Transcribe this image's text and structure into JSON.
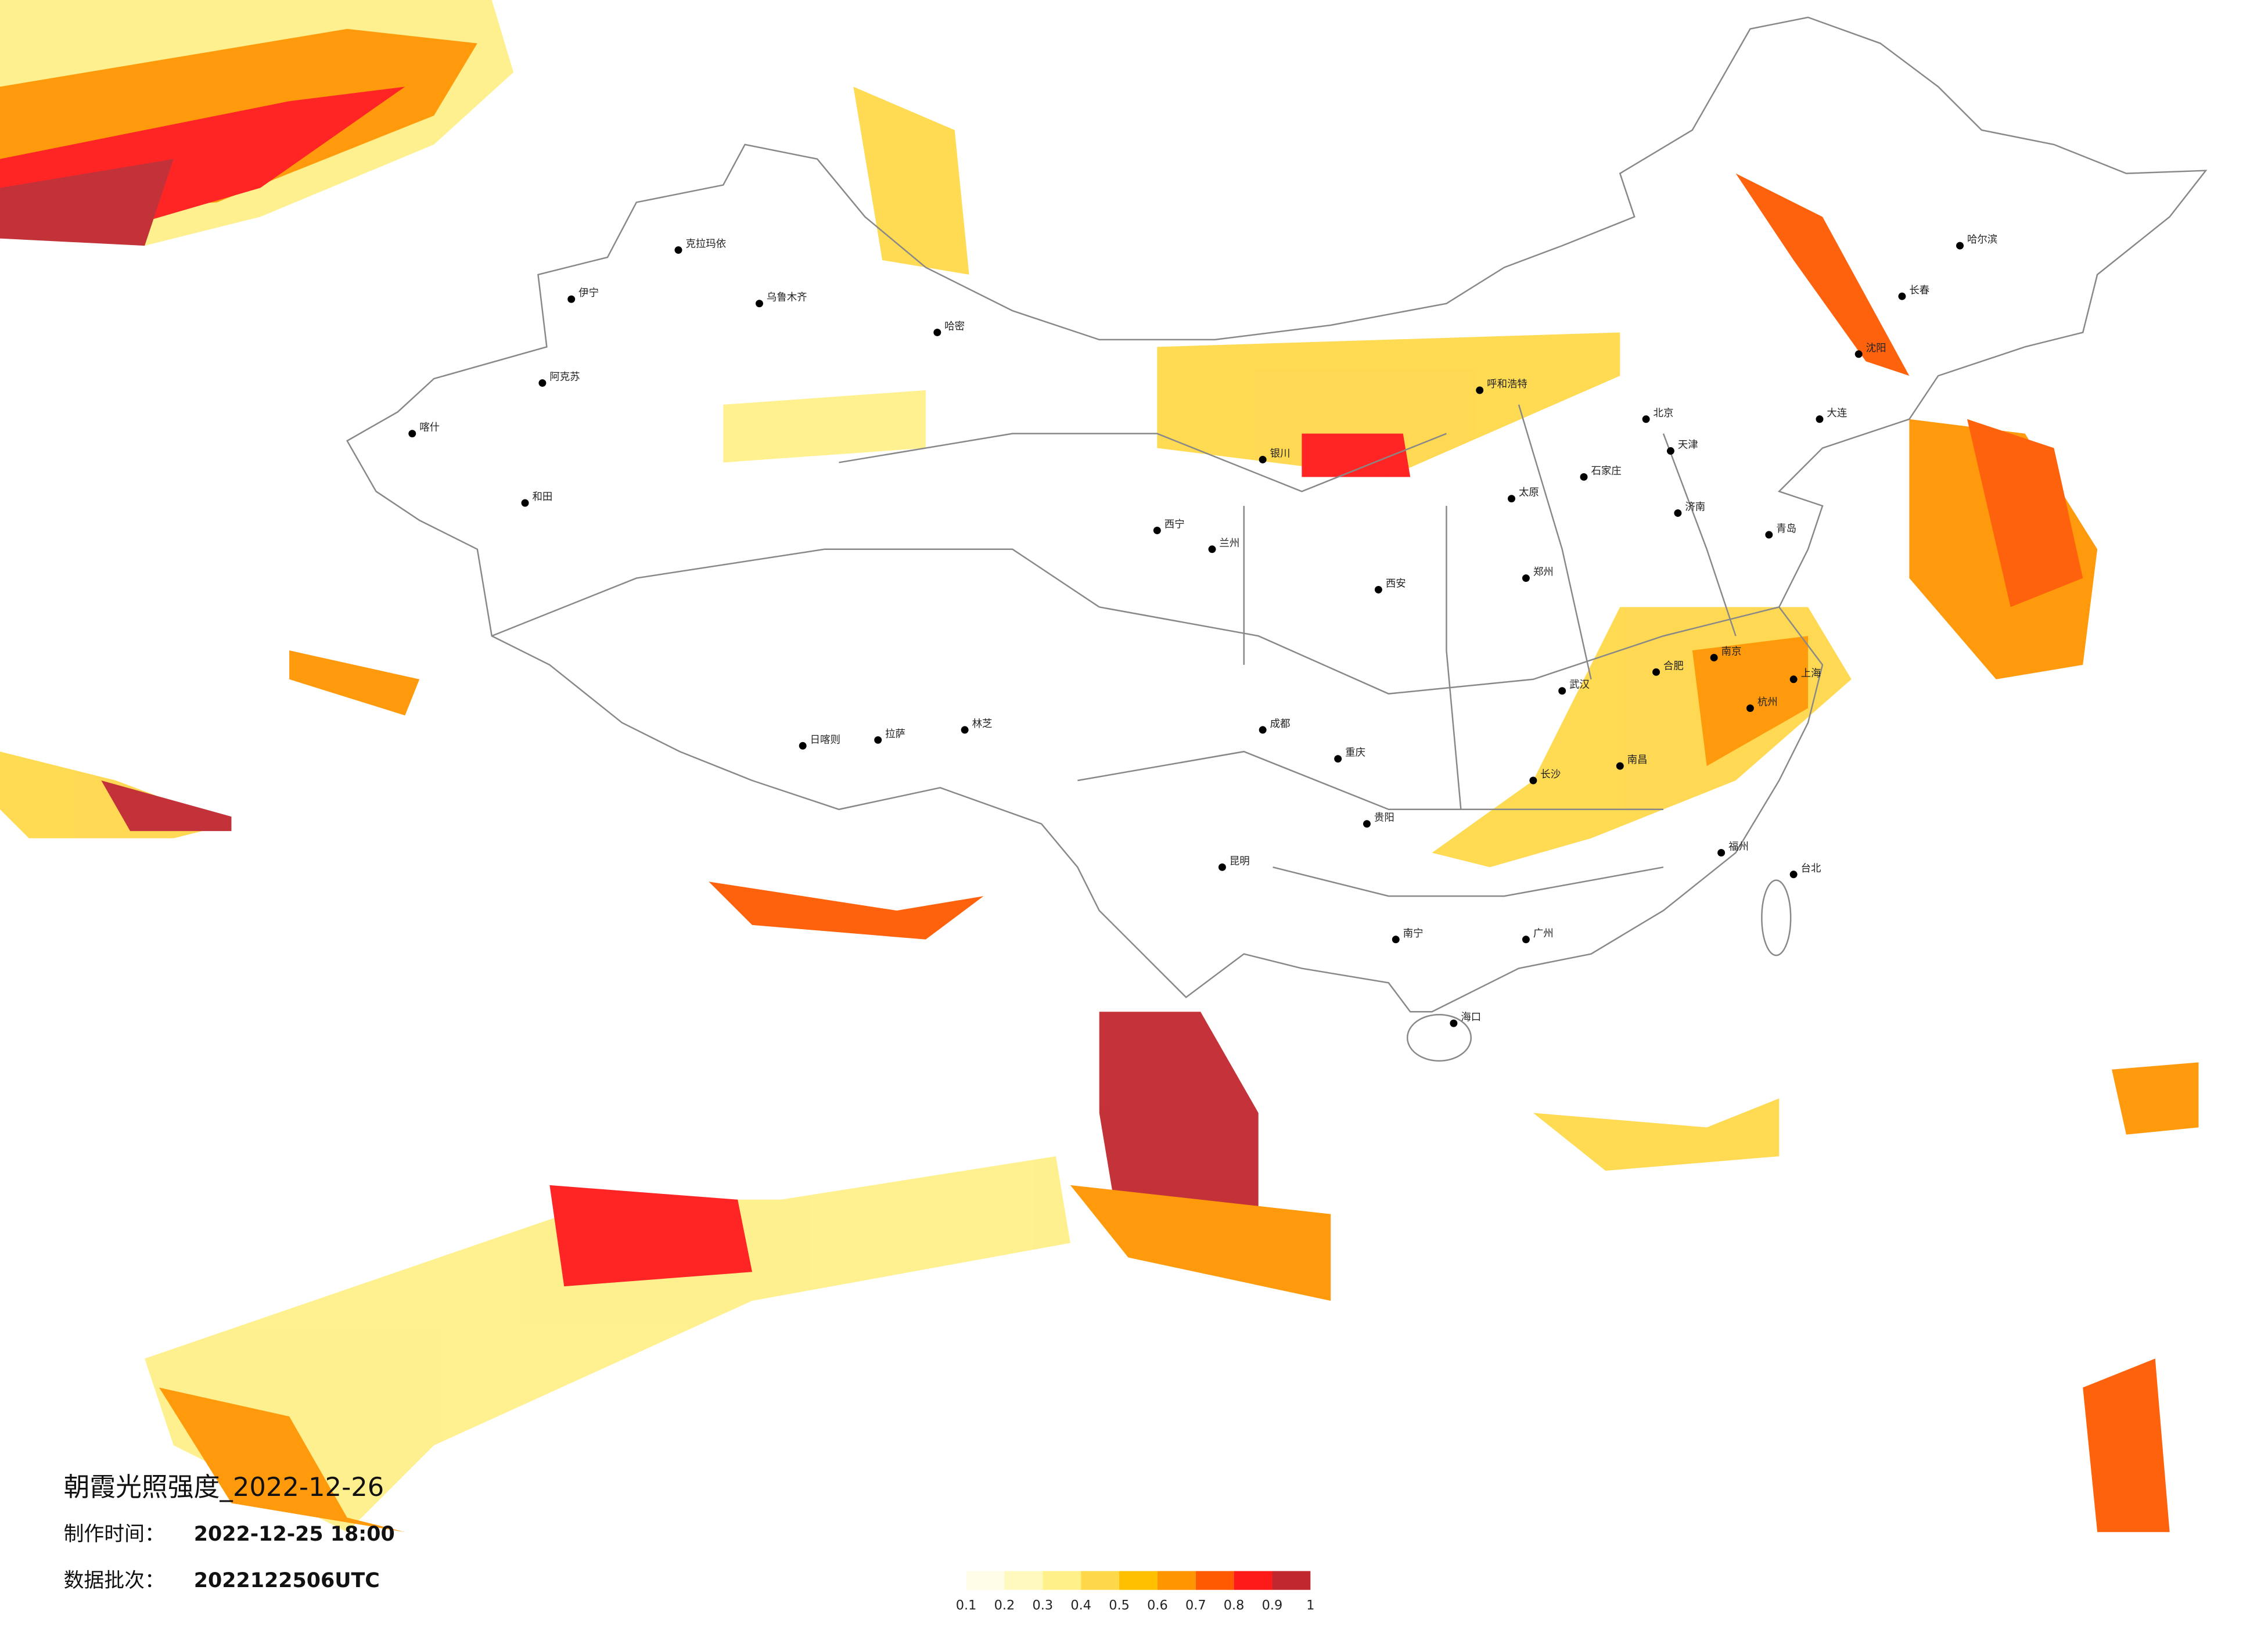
{
  "header": {
    "title": "朝霞光照强度_2022-12-26",
    "made_label": "制作时间：",
    "made_time": "2022-12-25 18:00",
    "batch_label": "数据批次：",
    "batch": "2022122506UTC"
  },
  "legend": {
    "ticks": [
      0.1,
      0.2,
      0.3,
      0.4,
      0.5,
      0.6,
      0.7,
      0.8,
      0.9,
      1
    ],
    "colors": [
      "#fffde8",
      "#fff9c0",
      "#fff08a",
      "#ffd84a",
      "#ffc000",
      "#ff9500",
      "#ff5a00",
      "#ff1a1a",
      "#c0282e"
    ]
  },
  "cities": [
    "乌鲁木齐",
    "克拉玛依",
    "伊宁",
    "阿克苏",
    "和田",
    "喀什",
    "哈密",
    "拉萨",
    "日喀则",
    "林芝",
    "西宁",
    "兰州",
    "银川",
    "呼和浩特",
    "北京",
    "天津",
    "石家庄",
    "太原",
    "济南",
    "西安",
    "郑州",
    "成都",
    "重庆",
    "贵阳",
    "昆明",
    "南宁",
    "广州",
    "长沙",
    "武汉",
    "南昌",
    "福州",
    "杭州",
    "上海",
    "南京",
    "合肥",
    "沈阳",
    "长春",
    "哈尔滨",
    "海口",
    "台北",
    "大连",
    "青岛"
  ]
}
